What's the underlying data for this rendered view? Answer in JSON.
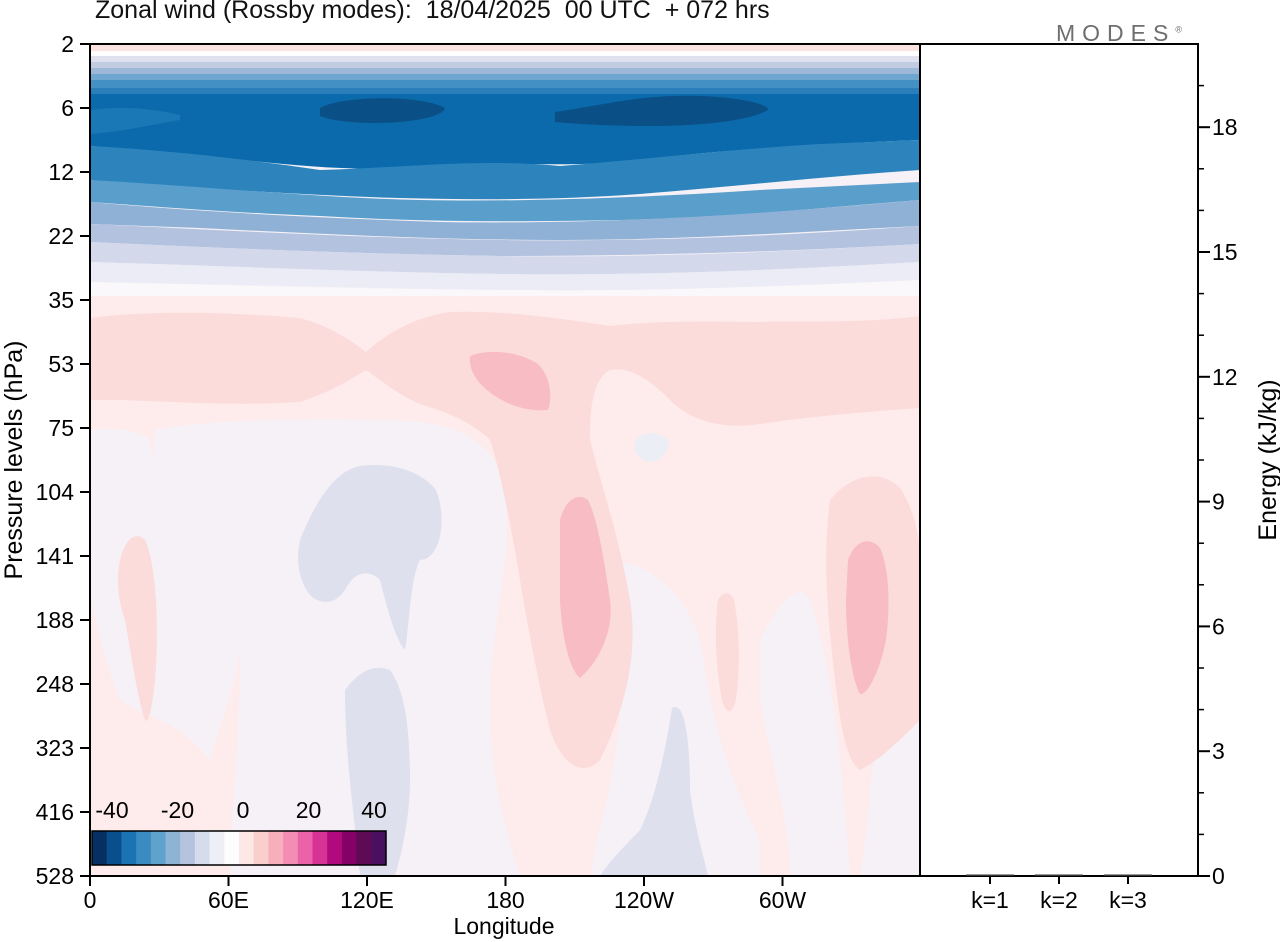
{
  "chart_data": [
    {
      "type": "heatmap",
      "title": "Zonal wind (Rossby modes):  18/04/2025  00 UTC  + 072 hrs",
      "xlabel": "Longitude",
      "ylabel": "Pressure levels (hPa)",
      "x_ticks": [
        "0",
        "60E",
        "120E",
        "180",
        "120W",
        "60W"
      ],
      "y_ticks": [
        "2",
        "6",
        "12",
        "22",
        "35",
        "53",
        "75",
        "104",
        "141",
        "188",
        "248",
        "323",
        "416",
        "528"
      ],
      "colorbar": {
        "tick_labels": [
          "-40",
          "-20",
          "0",
          "20",
          "40"
        ],
        "colors": [
          "#053061",
          "#0a4f8d",
          "#1b73b3",
          "#3a8bc2",
          "#5fa2cc",
          "#8db3d5",
          "#b5c3de",
          "#d6dcec",
          "#eeeef6",
          "#fdfdfd",
          "#fde8e6",
          "#f9cfce",
          "#f7b0bb",
          "#f38db5",
          "#ec62a8",
          "#d63394",
          "#b10a7e",
          "#850067",
          "#5e0a55",
          "#4a1060"
        ]
      },
      "approx_field_rows": [
        {
          "level": "2",
          "value": 3
        },
        {
          "level": "3",
          "value": -5
        },
        {
          "level": "4",
          "value": -15
        },
        {
          "level": "5",
          "value": -30
        },
        {
          "level": "6",
          "value": -37
        },
        {
          "level": "8",
          "value": -38
        },
        {
          "level": "10",
          "value": -30
        },
        {
          "level": "12",
          "value": -24
        },
        {
          "level": "16",
          "value": -19
        },
        {
          "level": "22",
          "value": -12
        },
        {
          "level": "28",
          "value": -5
        },
        {
          "level": "35",
          "value": 1
        },
        {
          "level": "53",
          "value": 6
        },
        {
          "level": "75",
          "value": 2
        },
        {
          "level": "104",
          "value": 0
        },
        {
          "level": "188",
          "value": 1
        },
        {
          "level": "323",
          "value": 1
        },
        {
          "level": "528",
          "value": 0
        }
      ]
    },
    {
      "type": "bar",
      "categories": [
        "k=1",
        "k=2",
        "k=3"
      ],
      "values": [
        0.02,
        0.02,
        0.02
      ],
      "ylabel": "Energy (kJ/kg)",
      "ylim": [
        0,
        20
      ],
      "y_ticks": [
        "0",
        "3",
        "6",
        "9",
        "12",
        "15",
        "18"
      ]
    }
  ],
  "brand": {
    "logo_text": "MODES",
    "logo_mark": "®"
  }
}
